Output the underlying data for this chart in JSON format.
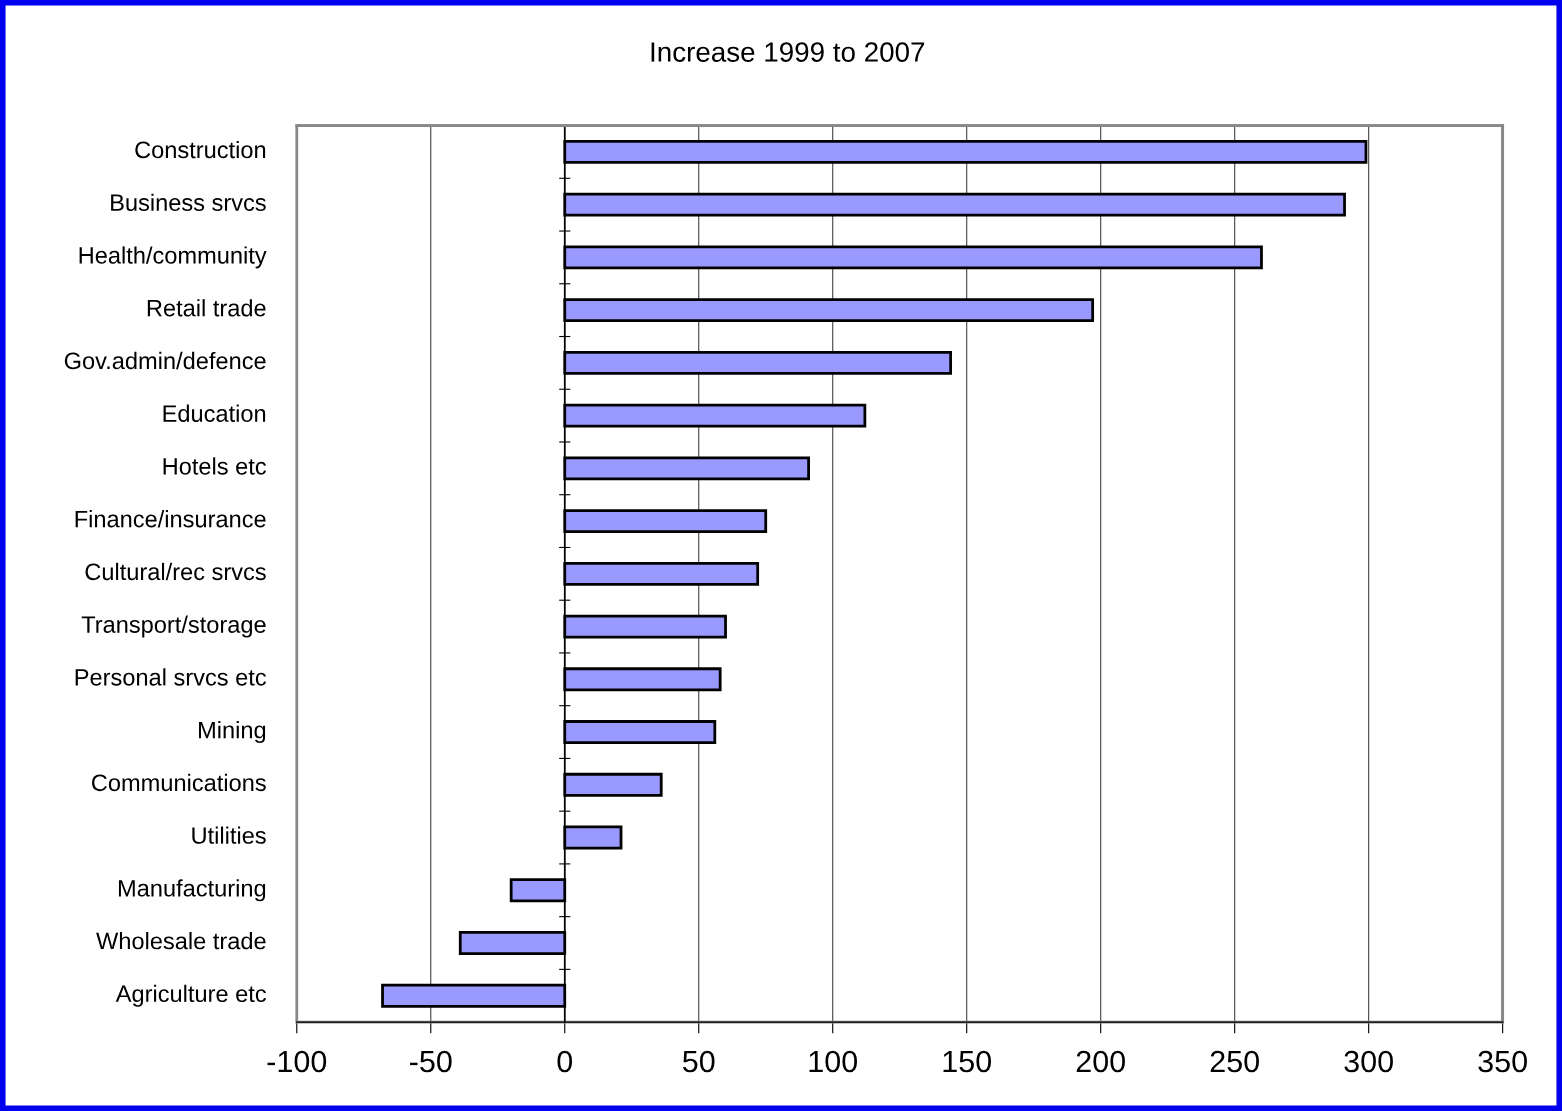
{
  "chart_data": {
    "type": "bar",
    "orientation": "horizontal",
    "title": "Increase 1999 to 2007",
    "categories": [
      "Construction",
      "Business srvcs",
      "Health/community",
      "Retail trade",
      "Gov.admin/defence",
      "Education",
      "Hotels etc",
      "Finance/insurance",
      "Cultural/rec srvcs",
      "Transport/storage",
      "Personal srvcs etc",
      "Mining",
      "Communications",
      "Utilities",
      "Manufacturing",
      "Wholesale trade",
      "Agriculture etc"
    ],
    "values": [
      299,
      291,
      260,
      197,
      144,
      112,
      91,
      75,
      72,
      60,
      58,
      56,
      36,
      21,
      -20,
      -39,
      -68
    ],
    "color": "#9999ff",
    "xlim": [
      -100,
      350
    ],
    "xticks": [
      -100,
      -50,
      0,
      50,
      100,
      150,
      200,
      250,
      300,
      350
    ],
    "grid": "x",
    "legend": false
  }
}
